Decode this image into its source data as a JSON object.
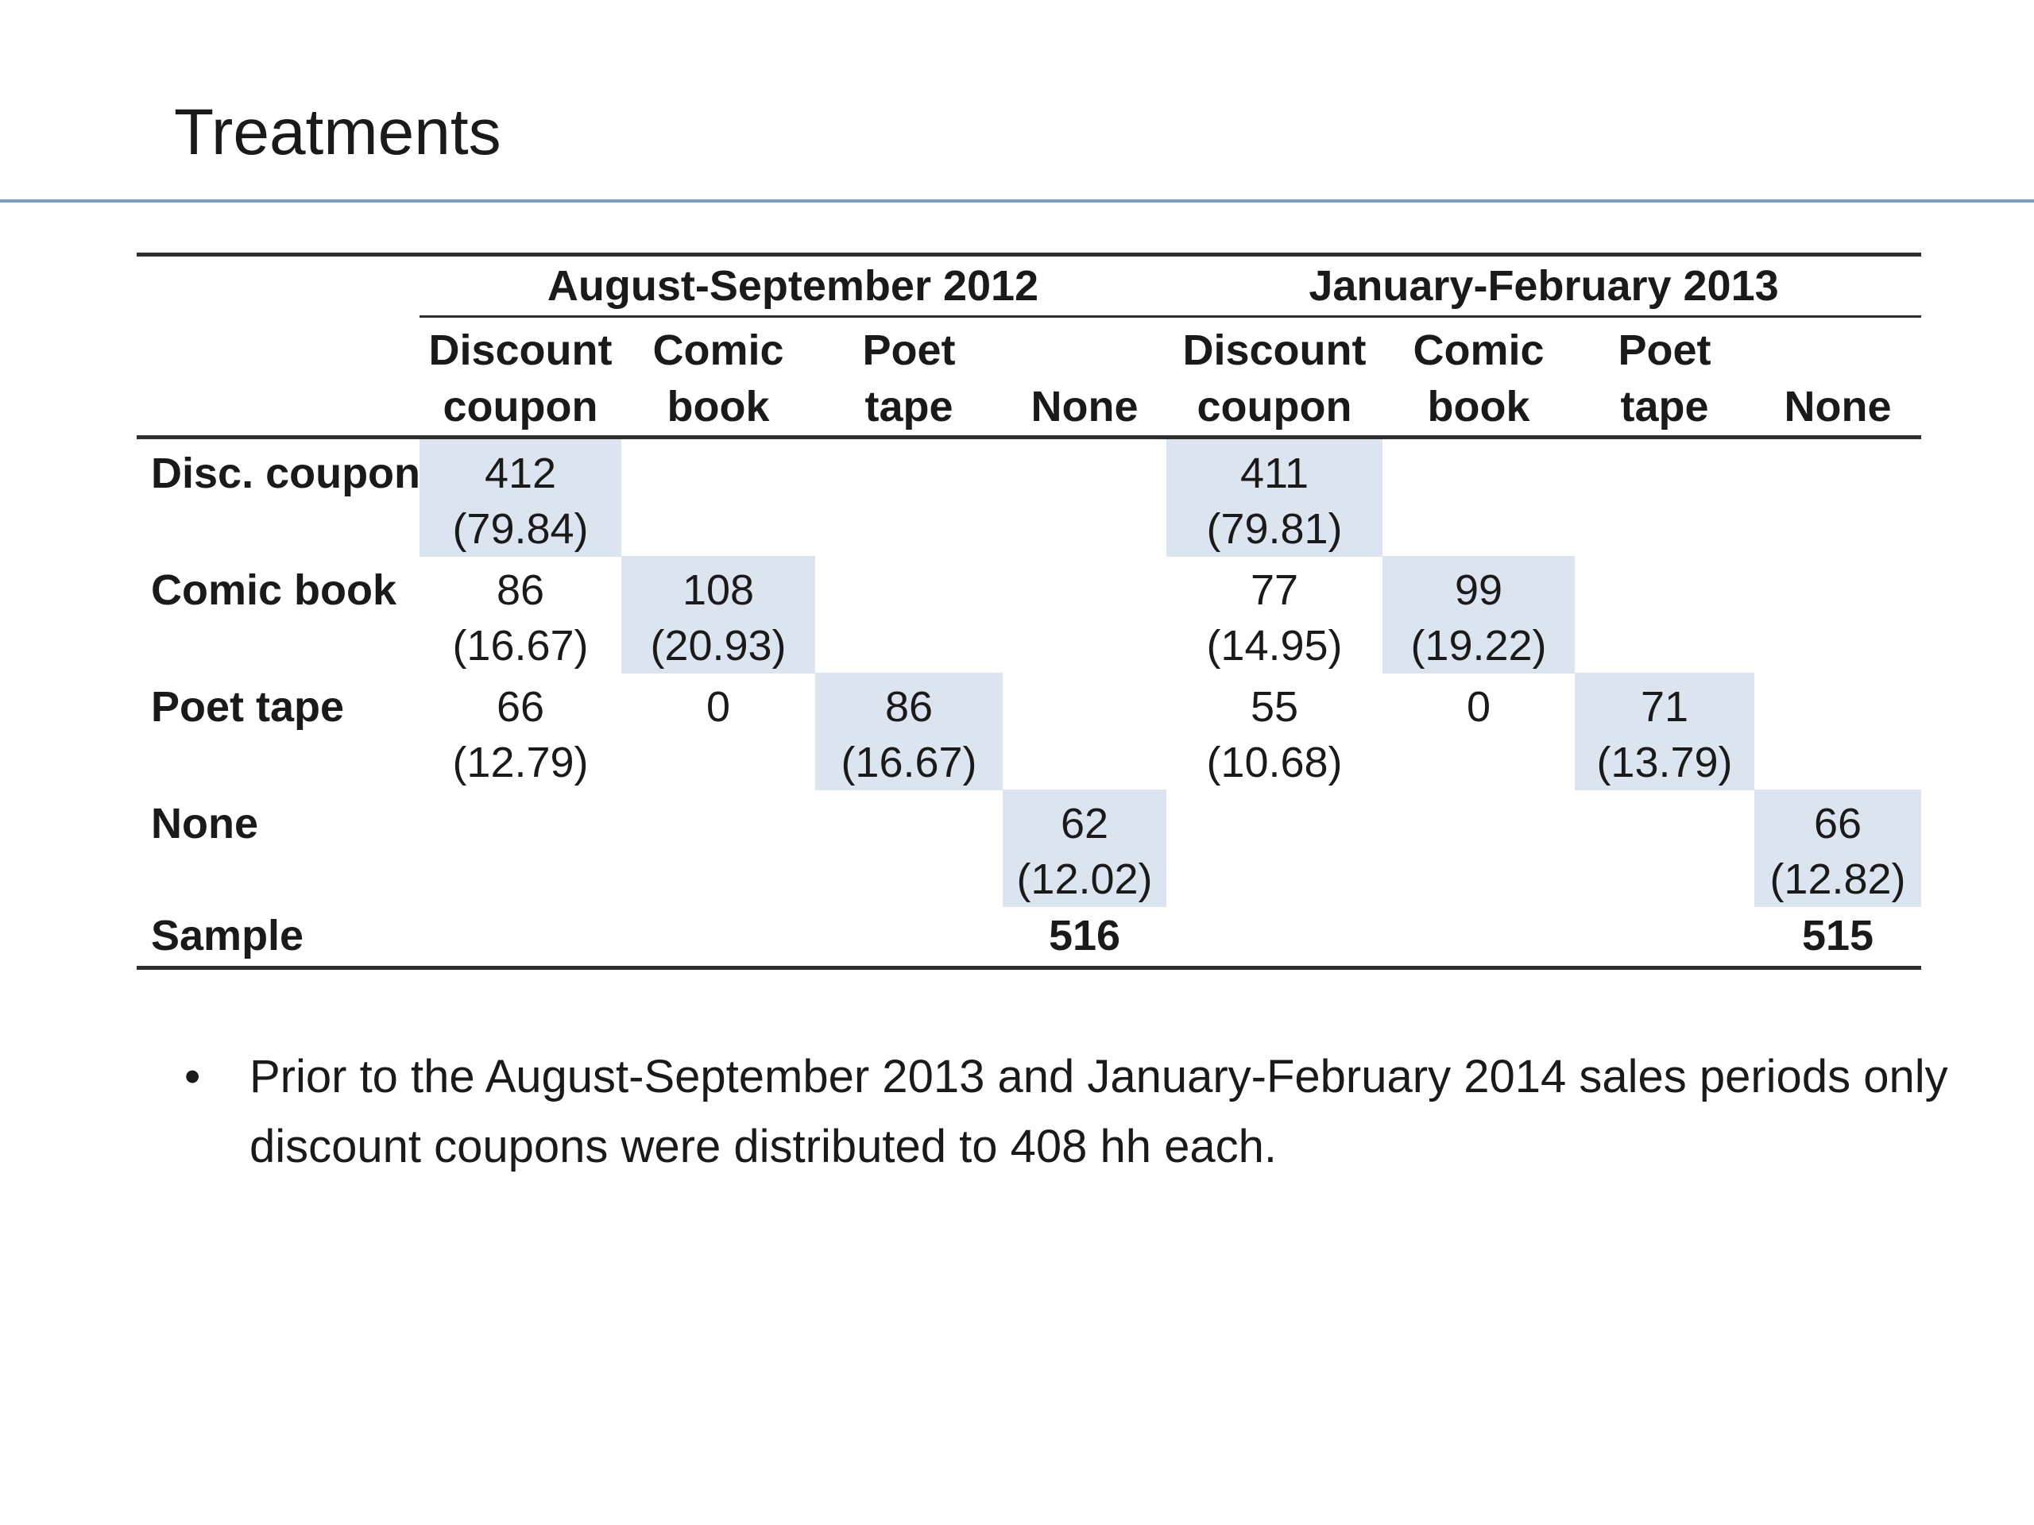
{
  "title": "Treatments",
  "table": {
    "groups": {
      "left": "August-September 2012",
      "right": "January-February 2013"
    },
    "cols": {
      "c1": {
        "l1": "Discount",
        "l2": "coupon"
      },
      "c2": {
        "l1": "Comic",
        "l2": "book"
      },
      "c3": {
        "l1": "Poet",
        "l2": "tape"
      },
      "c4": {
        "l1": "",
        "l2": "None"
      },
      "c5": {
        "l1": "Discount",
        "l2": "coupon"
      },
      "c6": {
        "l1": "Comic",
        "l2": "book"
      },
      "c7": {
        "l1": "Poet",
        "l2": "tape"
      },
      "c8": {
        "l1": "",
        "l2": "None"
      }
    },
    "rows": {
      "disc": {
        "label": "Disc. coupon",
        "c1v": "412",
        "c1p": "(79.84)",
        "c5v": "411",
        "c5p": "(79.81)"
      },
      "comic": {
        "label": "Comic book",
        "c1v": "86",
        "c1p": "(16.67)",
        "c2v": "108",
        "c2p": "(20.93)",
        "c5v": "77",
        "c5p": "(14.95)",
        "c6v": "99",
        "c6p": "(19.22)"
      },
      "poet": {
        "label": "Poet tape",
        "c1v": "66",
        "c1p": "(12.79)",
        "c2v": "0",
        "c3v": "86",
        "c3p": "(16.67)",
        "c5v": "55",
        "c5p": "(10.68)",
        "c6v": "0",
        "c7v": "71",
        "c7p": "(13.79)"
      },
      "none": {
        "label": "None",
        "c4v": "62",
        "c4p": "(12.02)",
        "c8v": "66",
        "c8p": "(12.82)"
      },
      "sample": {
        "label": "Sample",
        "c4v": "516",
        "c8v": "515"
      }
    }
  },
  "bullet": {
    "marker": "•",
    "text": "Prior to the August-September 2013 and January-February 2014 sales periods only discount coupons were distributed to 408 hh each."
  },
  "colors": {
    "accent_line": "#7c9cc9",
    "cell_shade": "#dce4ef",
    "rule": "#2e2e2e",
    "text": "#1a1a1a"
  }
}
